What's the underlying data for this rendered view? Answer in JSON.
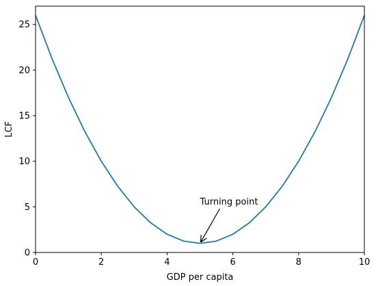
{
  "chart_data": {
    "type": "line",
    "xlabel": "GDP per capita",
    "ylabel": "LCF",
    "xlim": [
      0,
      10
    ],
    "ylim": [
      0,
      27
    ],
    "x_ticks": [
      "0",
      "2",
      "4",
      "6",
      "8",
      "10"
    ],
    "y_ticks": [
      "0",
      "5",
      "10",
      "15",
      "20",
      "25"
    ],
    "grid": false,
    "legend": "none",
    "series": [
      {
        "color": "#1f77b4",
        "x": [
          0,
          0.5,
          1,
          1.5,
          2,
          2.5,
          3,
          3.5,
          4,
          4.5,
          5,
          5.5,
          6,
          6.5,
          7,
          7.5,
          8,
          8.5,
          9,
          9.5,
          10
        ],
        "y": [
          26.0,
          21.25,
          17.0,
          13.25,
          10.0,
          7.25,
          5.0,
          3.25,
          2.0,
          1.25,
          1.0,
          1.25,
          2.0,
          3.25,
          5.0,
          7.25,
          10.0,
          13.25,
          17.0,
          21.25,
          26.0
        ]
      }
    ],
    "annotations": [
      {
        "text": "Turning point",
        "point": [
          5,
          1
        ],
        "text_at": [
          5,
          3.3
        ]
      }
    ]
  }
}
